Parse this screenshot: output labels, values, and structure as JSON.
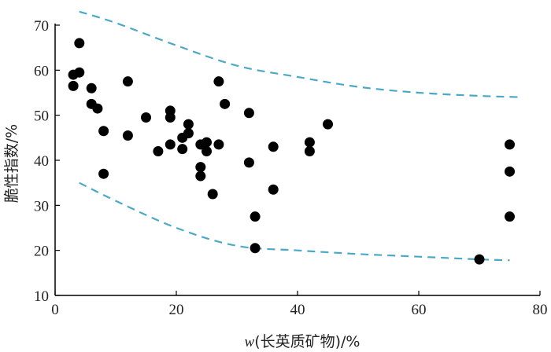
{
  "chart_data": {
    "type": "scatter",
    "title": "",
    "xlabel_var": "w",
    "xlabel_rest": "(长英质矿物)/%",
    "ylabel": "脆性指数/%",
    "xlim": [
      0,
      80
    ],
    "ylim": [
      10,
      70
    ],
    "x_ticks": [
      "0",
      "20",
      "40",
      "60",
      "80"
    ],
    "y_ticks": [
      "10",
      "20",
      "30",
      "40",
      "50",
      "60",
      "70"
    ],
    "grid": false,
    "point_color": "#000000",
    "bound_color": "#4aa8c8",
    "points": [
      [
        3,
        59
      ],
      [
        3,
        56.5
      ],
      [
        4,
        66
      ],
      [
        4,
        59.5
      ],
      [
        6,
        56
      ],
      [
        6,
        52.5
      ],
      [
        7,
        51.5
      ],
      [
        8,
        46.5
      ],
      [
        8,
        37
      ],
      [
        12,
        57.5
      ],
      [
        12,
        45.5
      ],
      [
        15,
        49.5
      ],
      [
        17,
        42
      ],
      [
        19,
        51
      ],
      [
        19,
        49.5
      ],
      [
        19,
        43.5
      ],
      [
        21,
        45
      ],
      [
        21,
        42.5
      ],
      [
        22,
        48
      ],
      [
        22,
        46
      ],
      [
        24,
        43.5
      ],
      [
        24,
        38.5
      ],
      [
        24,
        36.5
      ],
      [
        25,
        44
      ],
      [
        25,
        42
      ],
      [
        26,
        32.5
      ],
      [
        27,
        57.5
      ],
      [
        27,
        43.5
      ],
      [
        28,
        52.5
      ],
      [
        32,
        50.5
      ],
      [
        32,
        39.5
      ],
      [
        33,
        27.5
      ],
      [
        33,
        20.5
      ],
      [
        36,
        43
      ],
      [
        36,
        33.5
      ],
      [
        42,
        44
      ],
      [
        42,
        42
      ],
      [
        45,
        48
      ],
      [
        70,
        18
      ],
      [
        75,
        43.5
      ],
      [
        75,
        37.5
      ],
      [
        75,
        27.5
      ]
    ],
    "upper_bound": [
      [
        4,
        73
      ],
      [
        10,
        70.5
      ],
      [
        20,
        65.5
      ],
      [
        30,
        61
      ],
      [
        40,
        58.5
      ],
      [
        50,
        56.3
      ],
      [
        60,
        55
      ],
      [
        70,
        54.3
      ],
      [
        77,
        54
      ]
    ],
    "lower_bound": [
      [
        4,
        35
      ],
      [
        10,
        31
      ],
      [
        20,
        25
      ],
      [
        30,
        21
      ],
      [
        40,
        20
      ],
      [
        50,
        19.2
      ],
      [
        60,
        18.6
      ],
      [
        70,
        18
      ],
      [
        75,
        17.8
      ]
    ]
  }
}
